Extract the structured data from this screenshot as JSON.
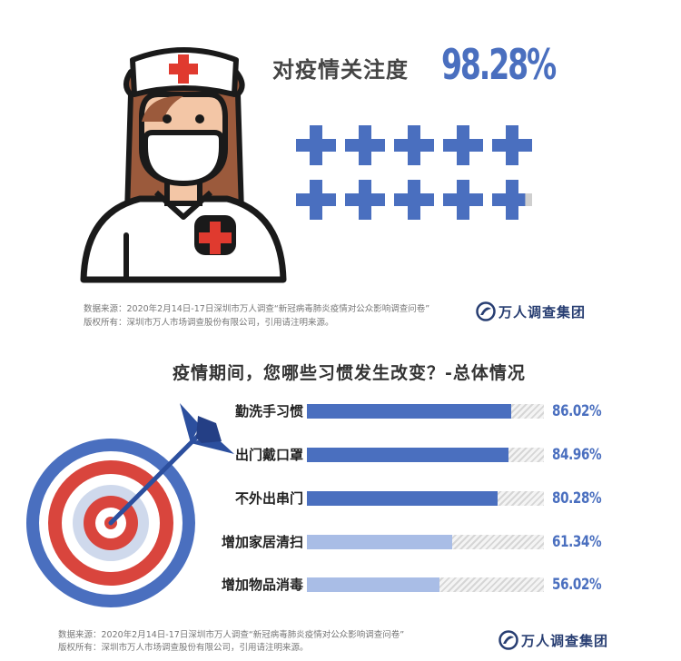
{
  "top": {
    "concern_label": "对疫情关注度",
    "concern_value": "98.28%",
    "concern_fraction": 0.9828,
    "cross_count": 10
  },
  "source_top": {
    "line1": "数据来源：2020年2月14日-17日深圳市万人调查“新冠病毒肺炎疫情对公众影响调查问卷”",
    "line2": "版权所有：深圳市万人市场调查股份有限公司，引用请注明来源。"
  },
  "logo": {
    "text": "万人调查集团"
  },
  "chart_data": {
    "type": "bar",
    "title": "疫情期间，您哪些习惯发生改变？-总体情况",
    "categories": [
      "勤洗手习惯",
      "出门戴口罩",
      "不外出串门",
      "增加家居清扫",
      "增加物品消毒"
    ],
    "values": [
      86.02,
      84.96,
      80.28,
      61.34,
      56.02
    ],
    "value_labels": [
      "86.02%",
      "84.96%",
      "80.28%",
      "61.34%",
      "56.02%"
    ],
    "ylim": [
      0,
      100
    ]
  },
  "source_bottom": {
    "line1": "数据来源：2020年2月14日-17日深圳市万人调查“新冠病毒肺炎疫情对公众影响调查问卷”",
    "line2": "版权所有：深圳市万人市场调查股份有限公司，引用请注明来源。"
  },
  "colors": {
    "accent": "#4a6fbf",
    "cross_red": "#e03a2f",
    "target_red": "#d9453d",
    "target_blue": "#4a6fbf",
    "arrow": "#2c4f9e",
    "track": "#d9d9d9",
    "logo": "#283e72"
  }
}
